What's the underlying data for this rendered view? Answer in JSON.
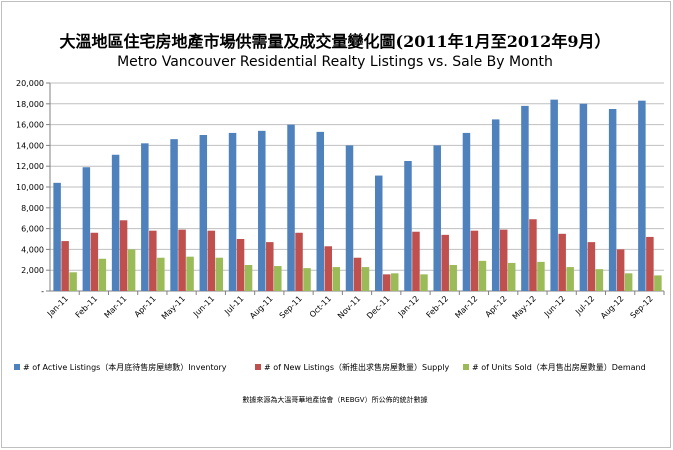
{
  "chart_data": {
    "type": "bar",
    "title": "大溫地區住宅房地產市場供需量及成交量變化圖(2011年1月至2012年9月）",
    "subtitle": "Metro Vancouver Residential Realty Listings vs. Sale By Month",
    "categories": [
      "Jan-11",
      "Feb-11",
      "Mar-11",
      "Apr-11",
      "May-11",
      "Jun-11",
      "Jul-11",
      "Aug-11",
      "Sep-11",
      "Oct-11",
      "Nov-11",
      "Dec-11",
      "Jan-12",
      "Feb-12",
      "Mar-12",
      "Apr-12",
      "May-12",
      "Jun-12",
      "Jul-12",
      "Aug-12",
      "Sep-12"
    ],
    "series": [
      {
        "name": "# of Active Listings（本月底待售房屋總數）Inventory",
        "color": "#4F81BD",
        "values": [
          10400,
          11900,
          13100,
          14200,
          14600,
          15000,
          15200,
          15400,
          16000,
          15300,
          14000,
          11100,
          12500,
          14000,
          15200,
          16500,
          17800,
          18400,
          18000,
          17500,
          18300
        ]
      },
      {
        "name": "# of New Listings（新推出求售房屋數量）Supply",
        "color": "#C0504D",
        "values": [
          4800,
          5600,
          6800,
          5800,
          5900,
          5800,
          5000,
          4700,
          5600,
          4300,
          3200,
          1600,
          5700,
          5400,
          5800,
          5900,
          6900,
          5500,
          4700,
          4000,
          5200
        ]
      },
      {
        "name": "# of Units Sold（本月售出房屋數量）Demand",
        "color": "#9BBB59",
        "values": [
          1800,
          3100,
          4000,
          3200,
          3300,
          3200,
          2500,
          2400,
          2200,
          2300,
          2300,
          1700,
          1600,
          2500,
          2900,
          2700,
          2800,
          2300,
          2100,
          1700,
          1500
        ]
      }
    ],
    "ylim": [
      0,
      20000
    ],
    "yticks": [
      "-",
      "2,000",
      "4,000",
      "6,000",
      "8,000",
      "10,000",
      "12,000",
      "14,000",
      "16,000",
      "18,000",
      "20,000"
    ],
    "grid": true,
    "legend_position": "bottom",
    "footnote": "數據來源為大溫哥華地產協會（REBGV）所公佈的統計數據"
  }
}
